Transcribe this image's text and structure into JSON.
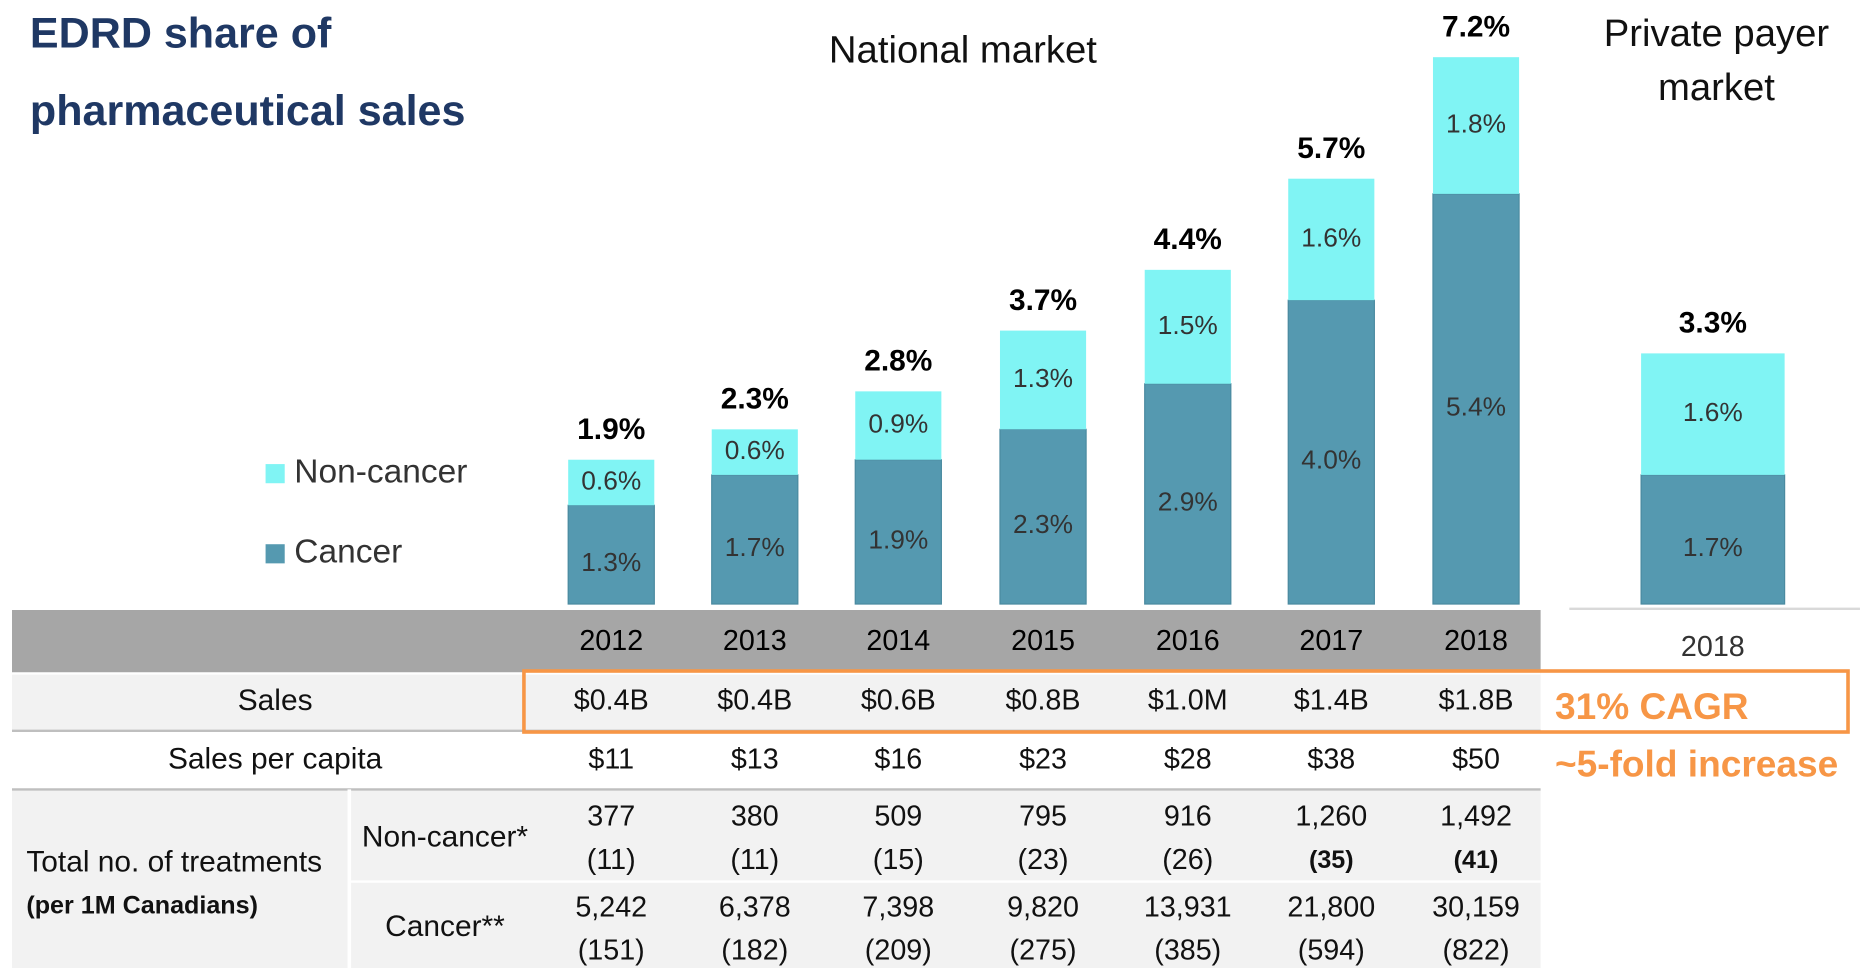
{
  "chart_data": [
    {
      "type": "bar",
      "stacked": true,
      "title": "National market",
      "categories": [
        "2012",
        "2013",
        "2014",
        "2015",
        "2016",
        "2017",
        "2018"
      ],
      "series": [
        {
          "name": "Cancer",
          "color": "#5599b0",
          "values": [
            1.3,
            1.7,
            1.9,
            2.3,
            2.9,
            4.0,
            5.4
          ],
          "value_labels": [
            "1.3%",
            "1.7%",
            "1.9%",
            "2.3%",
            "2.9%",
            "4.0%",
            "5.4%"
          ]
        },
        {
          "name": "Non-cancer",
          "color": "#80f4f4",
          "values": [
            0.6,
            0.6,
            0.9,
            1.3,
            1.5,
            1.6,
            1.8
          ],
          "value_labels": [
            "0.6%",
            "0.6%",
            "0.9%",
            "1.3%",
            "1.5%",
            "1.6%",
            "1.8%"
          ]
        }
      ],
      "totals": [
        1.9,
        2.3,
        2.8,
        3.7,
        4.4,
        5.7,
        7.2
      ],
      "total_labels": [
        "1.9%",
        "2.3%",
        "2.8%",
        "3.7%",
        "4.4%",
        "5.7%",
        "7.2%"
      ],
      "legend": "left"
    },
    {
      "type": "bar",
      "stacked": true,
      "title": [
        "Private payer",
        "market"
      ],
      "categories": [
        "2018"
      ],
      "series": [
        {
          "name": "Cancer",
          "color": "#5599b0",
          "values": [
            1.7
          ],
          "value_labels": [
            "1.7%"
          ]
        },
        {
          "name": "Non-cancer",
          "color": "#80f4f4",
          "values": [
            1.6
          ],
          "value_labels": [
            "1.6%"
          ]
        }
      ],
      "totals": [
        3.3
      ],
      "total_labels": [
        "3.3%"
      ]
    }
  ],
  "title": [
    "EDRD share of",
    "pharmaceutical sales"
  ],
  "table": {
    "sales": {
      "label": "Sales",
      "cells": [
        "$0.4B",
        "$0.4B",
        "$0.6B",
        "$0.8B",
        "$1.0M",
        "$1.4B",
        "$1.8B"
      ]
    },
    "per_capita": {
      "label": "Sales per capita",
      "cells": [
        "$11",
        "$13",
        "$16",
        "$23",
        "$28",
        "$38",
        "$50"
      ]
    },
    "treatments": {
      "label": "Total no. of treatments",
      "sublabel": "(per 1M Canadians)",
      "rows": [
        {
          "label": "Non-cancer*",
          "cells": [
            {
              "count": "377",
              "per_million": "(11)"
            },
            {
              "count": "380",
              "per_million": "(11)"
            },
            {
              "count": "509",
              "per_million": "(15)"
            },
            {
              "count": "795",
              "per_million": "(23)"
            },
            {
              "count": "916",
              "per_million": "(26)"
            },
            {
              "count": "1,260",
              "per_million": "(35)",
              "bold": true
            },
            {
              "count": "1,492",
              "per_million": "(41)",
              "bold": true
            }
          ]
        },
        {
          "label": "Cancer**",
          "cells": [
            {
              "count": "5,242",
              "per_million": "(151)"
            },
            {
              "count": "6,378",
              "per_million": "(182)"
            },
            {
              "count": "7,398",
              "per_million": "(209)"
            },
            {
              "count": "9,820",
              "per_million": "(275)"
            },
            {
              "count": "13,931",
              "per_million": "(385)"
            },
            {
              "count": "21,800",
              "per_million": "(594)"
            },
            {
              "count": "30,159",
              "per_million": "(822)"
            }
          ]
        }
      ]
    }
  },
  "annotations": [
    "31% CAGR",
    "~5-fold increase"
  ]
}
